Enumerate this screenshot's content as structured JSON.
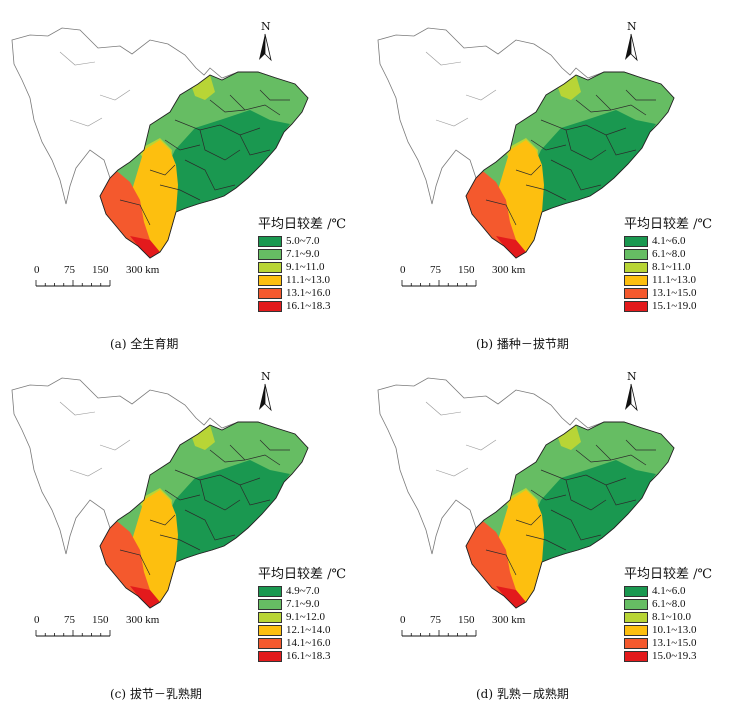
{
  "north_label": "N",
  "legend_title": "平均日较差 /℃",
  "scale_labels": [
    "0",
    "75",
    "150",
    "300 km"
  ],
  "colors": {
    "class1": "#1a9850",
    "class2": "#66bd63",
    "class3": "#b8d536",
    "class4": "#fdbf0f",
    "class5": "#f4592d",
    "class6": "#e31a1c"
  },
  "panels": [
    {
      "id": "a",
      "caption": "(a)  全生育期",
      "legend": [
        "5.0~7.0",
        "7.1~9.0",
        "9.1~11.0",
        "11.1~13.0",
        "13.1~16.0",
        "16.1~18.3"
      ]
    },
    {
      "id": "b",
      "caption": "(b)  播种－拔节期",
      "legend": [
        "4.1~6.0",
        "6.1~8.0",
        "8.1~11.0",
        "11.1~13.0",
        "13.1~15.0",
        "15.1~19.0"
      ]
    },
    {
      "id": "c",
      "caption": "(c)  拔节－乳熟期",
      "legend": [
        "4.9~7.0",
        "7.1~9.0",
        "9.1~12.0",
        "12.1~14.0",
        "14.1~16.0",
        "16.1~18.3"
      ]
    },
    {
      "id": "d",
      "caption": "(d)  乳熟－成熟期",
      "legend": [
        "4.1~6.0",
        "6.1~8.0",
        "8.1~10.0",
        "10.1~13.0",
        "13.1~15.0",
        "15.0~19.3"
      ]
    }
  ]
}
